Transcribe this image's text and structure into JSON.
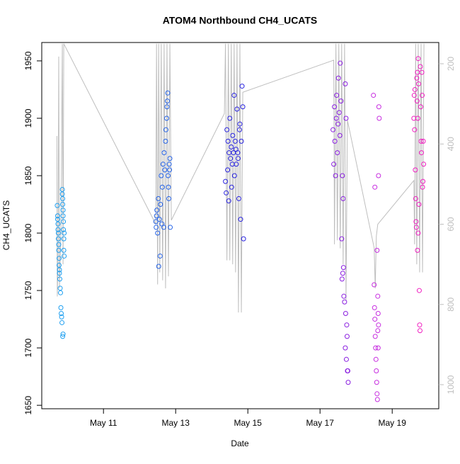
{
  "chart_data": {
    "type": "scatter",
    "title": "ATOM4 Northbound CH4_UCATS",
    "x_label": "Date",
    "y_label": "CH4_UCATS",
    "xlim": [
      9.29,
      20.29
    ],
    "xticks": [
      {
        "value": 11,
        "label": "May 11"
      },
      {
        "value": 13,
        "label": "May 13"
      },
      {
        "value": 15,
        "label": "May 15"
      },
      {
        "value": 17,
        "label": "May 17"
      },
      {
        "value": 19,
        "label": "May 19"
      }
    ],
    "ylim": [
      1647,
      1966
    ],
    "yticks": [
      1650,
      1700,
      1750,
      1800,
      1850,
      1900,
      1950
    ],
    "y2lim": [
      1060,
      147
    ],
    "y2ticks": [
      200,
      400,
      600,
      800,
      1000
    ],
    "y2_color": "#bebebe",
    "series": [
      {
        "type": "line",
        "axis": "y2",
        "color": "#bebebe",
        "x": [
          9.71,
          9.72,
          9.74,
          9.76,
          9.78,
          9.82,
          9.86,
          9.88,
          9.9,
          12.45,
          12.47,
          12.5,
          12.53,
          12.56,
          12.6,
          12.64,
          12.68,
          12.72,
          12.76,
          12.8,
          12.84,
          12.88,
          14.35,
          14.38,
          14.42,
          14.46,
          14.5,
          14.54,
          14.58,
          14.62,
          14.66,
          14.7,
          14.74,
          14.78,
          14.82,
          14.86,
          17.38,
          17.4,
          17.44,
          17.48,
          17.52,
          17.56,
          17.6,
          17.64,
          17.68,
          17.72,
          17.76,
          18.5,
          18.53,
          18.56,
          18.6,
          19.6,
          19.62,
          19.65,
          19.68,
          19.72,
          19.76,
          19.8,
          19.84,
          19.88
        ],
        "values": [
          380,
          780,
          700,
          182,
          760,
          620,
          150,
          700,
          150,
          600,
          150,
          750,
          150,
          720,
          150,
          740,
          150,
          760,
          150,
          730,
          150,
          590,
          324,
          150,
          690,
          150,
          690,
          150,
          700,
          150,
          720,
          150,
          820,
          150,
          820,
          271,
          191,
          650,
          150,
          640,
          150,
          660,
          150,
          700,
          150,
          790,
          341,
          659,
          760,
          630,
          600,
          491,
          650,
          150,
          700,
          150,
          720,
          150,
          720,
          150
        ]
      },
      {
        "type": "scatter",
        "color": "#1e9ff0",
        "x": [
          9.72,
          9.73,
          9.73,
          9.74,
          9.74,
          9.75,
          9.75,
          9.76,
          9.76,
          9.77,
          9.77,
          9.78,
          9.78,
          9.79,
          9.8,
          9.81,
          9.82,
          9.83,
          9.84,
          9.85,
          9.86,
          9.86,
          9.87,
          9.87,
          9.88,
          9.88,
          9.89,
          9.89,
          9.9,
          9.9,
          9.91,
          9.91,
          9.87,
          9.88
        ],
        "values": [
          1824,
          1815,
          1812,
          1808,
          1803,
          1800,
          1795,
          1790,
          1785,
          1778,
          1772,
          1768,
          1765,
          1760,
          1752,
          1748,
          1735,
          1730,
          1727,
          1722,
          1838,
          1834,
          1830,
          1825,
          1820,
          1815,
          1810,
          1803,
          1795,
          1785,
          1780,
          1800,
          1710,
          1712
        ]
      },
      {
        "type": "scatter",
        "color": "#2463e8",
        "x": [
          12.45,
          12.46,
          12.47,
          12.48,
          12.5,
          12.52,
          12.53,
          12.55,
          12.57,
          12.58,
          12.6,
          12.62,
          12.63,
          12.65,
          12.67,
          12.68,
          12.7,
          12.72,
          12.73,
          12.75,
          12.76,
          12.77,
          12.78,
          12.79,
          12.8,
          12.81,
          12.82,
          12.83,
          12.84,
          12.85
        ],
        "values": [
          1810,
          1805,
          1815,
          1820,
          1800,
          1830,
          1771,
          1812,
          1780,
          1825,
          1850,
          1808,
          1840,
          1860,
          1805,
          1870,
          1855,
          1880,
          1890,
          1900,
          1910,
          1915,
          1922,
          1850,
          1840,
          1830,
          1860,
          1855,
          1865,
          1805
        ]
      },
      {
        "type": "scatter",
        "color": "#2a24e0",
        "x": [
          14.38,
          14.4,
          14.42,
          14.44,
          14.45,
          14.47,
          14.48,
          14.5,
          14.52,
          14.54,
          14.55,
          14.57,
          14.58,
          14.6,
          14.62,
          14.63,
          14.65,
          14.67,
          14.68,
          14.7,
          14.72,
          14.73,
          14.75,
          14.77,
          14.78,
          14.8,
          14.82,
          14.84,
          14.86,
          14.88
        ],
        "values": [
          1845,
          1835,
          1890,
          1855,
          1880,
          1828,
          1870,
          1900,
          1865,
          1875,
          1840,
          1860,
          1885,
          1870,
          1920,
          1850,
          1880,
          1873,
          1860,
          1908,
          1870,
          1865,
          1830,
          1890,
          1895,
          1812,
          1880,
          1928,
          1910,
          1795
        ]
      },
      {
        "type": "scatter",
        "color": "#8a1ee0",
        "x": [
          17.36,
          17.38,
          17.4,
          17.41,
          17.43,
          17.45,
          17.46,
          17.48,
          17.5,
          17.51,
          17.53,
          17.55,
          17.56,
          17.58,
          17.6,
          17.61,
          17.63,
          17.65,
          17.66,
          17.68,
          17.7,
          17.71,
          17.73,
          17.75,
          17.76,
          17.78,
          17.62,
          17.64,
          17.7,
          17.72,
          17.74,
          17.77
        ],
        "values": [
          1890,
          1860,
          1910,
          1880,
          1850,
          1900,
          1920,
          1870,
          1895,
          1935,
          1905,
          1885,
          1948,
          1915,
          1795,
          1760,
          1765,
          1770,
          1745,
          1740,
          1700,
          1730,
          1690,
          1710,
          1680,
          1670,
          1850,
          1830,
          1930,
          1900,
          1720,
          1680
        ]
      },
      {
        "type": "scatter",
        "color": "#c72ee0",
        "x": [
          18.48,
          18.5,
          18.51,
          18.52,
          18.53,
          18.54,
          18.55,
          18.56,
          18.57,
          18.58,
          18.59,
          18.6,
          18.61,
          18.62,
          18.63,
          18.64,
          18.52,
          18.6,
          18.61,
          18.62,
          18.58
        ],
        "values": [
          1920,
          1755,
          1735,
          1725,
          1710,
          1700,
          1690,
          1680,
          1670,
          1660,
          1655,
          1715,
          1700,
          1850,
          1910,
          1900,
          1840,
          1745,
          1730,
          1720,
          1785
        ]
      },
      {
        "type": "scatter",
        "color": "#f01ec0",
        "x": [
          19.6,
          19.61,
          19.62,
          19.63,
          19.64,
          19.65,
          19.66,
          19.67,
          19.68,
          19.69,
          19.7,
          19.71,
          19.72,
          19.73,
          19.74,
          19.75,
          19.76,
          19.77,
          19.78,
          19.79,
          19.8,
          19.81,
          19.82,
          19.83,
          19.84,
          19.85,
          19.86,
          19.87,
          19.7,
          19.72
        ],
        "values": [
          1900,
          1920,
          1890,
          1925,
          1855,
          1830,
          1810,
          1805,
          1935,
          1915,
          1940,
          1900,
          1952,
          1930,
          1825,
          1750,
          1720,
          1715,
          1945,
          1910,
          1880,
          1870,
          1940,
          1920,
          1840,
          1845,
          1880,
          1860,
          1785,
          1800
        ]
      }
    ]
  }
}
